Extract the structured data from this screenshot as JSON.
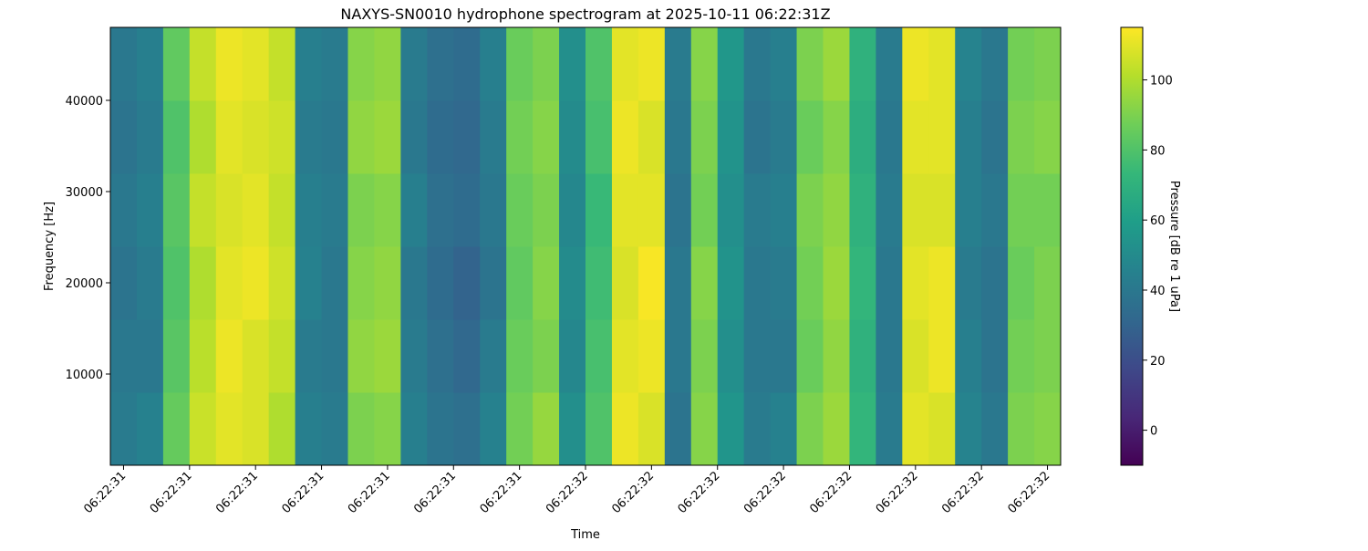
{
  "chart_data": {
    "type": "heatmap",
    "title": "NAXYS-SN0010 hydrophone spectrogram at 2025-10-11 06:22:31Z",
    "x_label": "Time",
    "y_label": "Frequency [Hz]",
    "colorbar_label": "Pressure [dB re 1 uPa]",
    "colormap": "viridis",
    "x": [
      31.3,
      31.34,
      31.38,
      31.42,
      31.46,
      31.5,
      31.54,
      31.58,
      31.62,
      31.66,
      31.7,
      31.74,
      31.78,
      31.82,
      31.86,
      31.9,
      31.94,
      31.98,
      32.02,
      32.06,
      32.1,
      32.14,
      32.18,
      32.22,
      32.26,
      32.3,
      32.34,
      32.38,
      32.42,
      32.46,
      32.5,
      32.54,
      32.58,
      32.62,
      32.66,
      32.7
    ],
    "y": [
      4000,
      12000,
      20000,
      28000,
      36000,
      44000
    ],
    "z": [
      [
        42,
        45,
        85,
        105,
        110,
        108,
        100,
        44,
        42,
        90,
        92,
        44,
        38,
        36,
        45,
        88,
        95,
        52,
        80,
        112,
        108,
        38,
        92,
        55,
        42,
        45,
        90,
        96,
        72,
        42,
        110,
        108,
        46,
        40,
        90,
        92
      ],
      [
        40,
        40,
        82,
        102,
        112,
        108,
        104,
        42,
        40,
        94,
        96,
        42,
        36,
        32,
        42,
        86,
        90,
        48,
        78,
        110,
        112,
        40,
        90,
        52,
        40,
        40,
        86,
        94,
        70,
        40,
        108,
        112,
        44,
        38,
        88,
        90
      ],
      [
        38,
        42,
        80,
        100,
        110,
        112,
        106,
        45,
        40,
        92,
        94,
        40,
        34,
        30,
        38,
        84,
        92,
        50,
        76,
        108,
        114,
        40,
        92,
        54,
        40,
        42,
        88,
        96,
        72,
        40,
        110,
        112,
        42,
        38,
        86,
        90
      ],
      [
        40,
        44,
        82,
        104,
        108,
        110,
        104,
        44,
        42,
        90,
        92,
        44,
        36,
        34,
        40,
        86,
        90,
        48,
        74,
        110,
        110,
        38,
        88,
        52,
        42,
        44,
        90,
        94,
        70,
        42,
        108,
        108,
        44,
        40,
        88,
        88
      ],
      [
        38,
        42,
        80,
        100,
        110,
        108,
        106,
        42,
        40,
        94,
        96,
        40,
        34,
        32,
        42,
        88,
        92,
        50,
        78,
        112,
        108,
        40,
        90,
        54,
        38,
        42,
        86,
        92,
        68,
        40,
        110,
        110,
        44,
        38,
        90,
        92
      ],
      [
        40,
        44,
        84,
        104,
        112,
        110,
        104,
        44,
        42,
        92,
        94,
        42,
        36,
        34,
        44,
        86,
        90,
        52,
        80,
        110,
        112,
        42,
        92,
        56,
        40,
        44,
        90,
        96,
        70,
        42,
        112,
        110,
        46,
        40,
        88,
        90
      ]
    ],
    "xlim": [
      31.28,
      32.72
    ],
    "ylim": [
      0,
      48000
    ],
    "clim": [
      -10,
      115
    ],
    "xticks": [
      {
        "value": 31.3,
        "label": "06:22:31"
      },
      {
        "value": 31.4,
        "label": "06:22:31"
      },
      {
        "value": 31.5,
        "label": "06:22:31"
      },
      {
        "value": 31.6,
        "label": "06:22:31"
      },
      {
        "value": 31.7,
        "label": "06:22:31"
      },
      {
        "value": 31.8,
        "label": "06:22:31"
      },
      {
        "value": 31.9,
        "label": "06:22:31"
      },
      {
        "value": 32.0,
        "label": "06:22:32"
      },
      {
        "value": 32.1,
        "label": "06:22:32"
      },
      {
        "value": 32.2,
        "label": "06:22:32"
      },
      {
        "value": 32.3,
        "label": "06:22:32"
      },
      {
        "value": 32.4,
        "label": "06:22:32"
      },
      {
        "value": 32.5,
        "label": "06:22:32"
      },
      {
        "value": 32.6,
        "label": "06:22:32"
      },
      {
        "value": 32.7,
        "label": "06:22:32"
      }
    ],
    "yticks": [
      10000,
      20000,
      30000,
      40000
    ],
    "cticks": [
      0,
      20,
      40,
      60,
      80,
      100
    ]
  }
}
